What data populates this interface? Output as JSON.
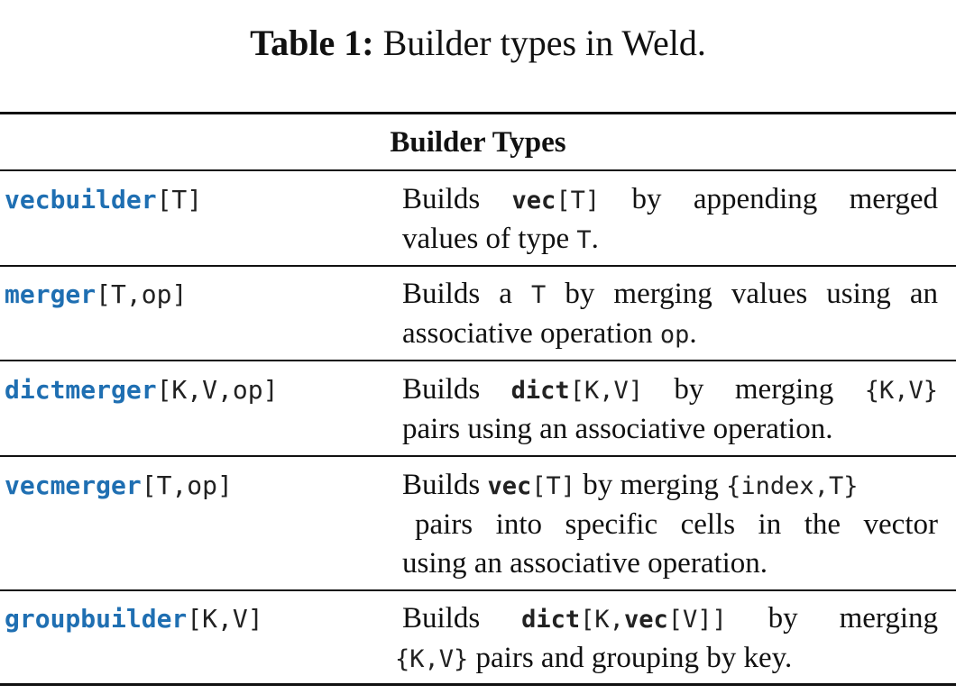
{
  "caption": {
    "label": "Table 1:",
    "text": "Builder types in Weld."
  },
  "table": {
    "header": "Builder Types",
    "rows": [
      {
        "name": {
          "keyword": "vecbuilder",
          "params": "[T]"
        },
        "desc": {
          "l1_a": "Builds ",
          "l1_kw": "vec",
          "l1_code": "[T]",
          "l1_b": " by appending merged",
          "l2_a": "values of type ",
          "l2_code": "T",
          "l2_b": "."
        }
      },
      {
        "name": {
          "keyword": "merger",
          "params": "[T,op]"
        },
        "desc": {
          "l1_a": "Builds a ",
          "l1_code": "T",
          "l1_b": " by merging values using an",
          "l2_a": "associative operation ",
          "l2_code": "op",
          "l2_b": "."
        }
      },
      {
        "name": {
          "keyword": "dictmerger",
          "params": "[K,V,op]"
        },
        "desc": {
          "l1_a": "Builds ",
          "l1_kw": "dict",
          "l1_code": "[K,V]",
          "l1_b": " by merging ",
          "l1_code2": "{K,V}",
          "l2": "pairs using an associative operation."
        }
      },
      {
        "name": {
          "keyword": "vecmerger",
          "params": "[T,op]"
        },
        "desc": {
          "l1_a": "Builds ",
          "l1_kw": "vec",
          "l1_code": "[T]",
          "l1_b": " by merging ",
          "l1_code2": "{index,T}",
          "l2": "pairs into specific cells in the vector",
          "l3": "using an associative operation."
        }
      },
      {
        "name": {
          "keyword": "groupbuilder",
          "params": "[K,V]"
        },
        "desc": {
          "l1_a": "Builds ",
          "l1_kw": "dict",
          "l1_code": "[K,",
          "l1_kw2": "vec",
          "l1_code2": "[V]]",
          "l1_b": " by merging",
          "l2_code": "{K,V}",
          "l2_b": " pairs and grouping by key."
        }
      }
    ]
  }
}
